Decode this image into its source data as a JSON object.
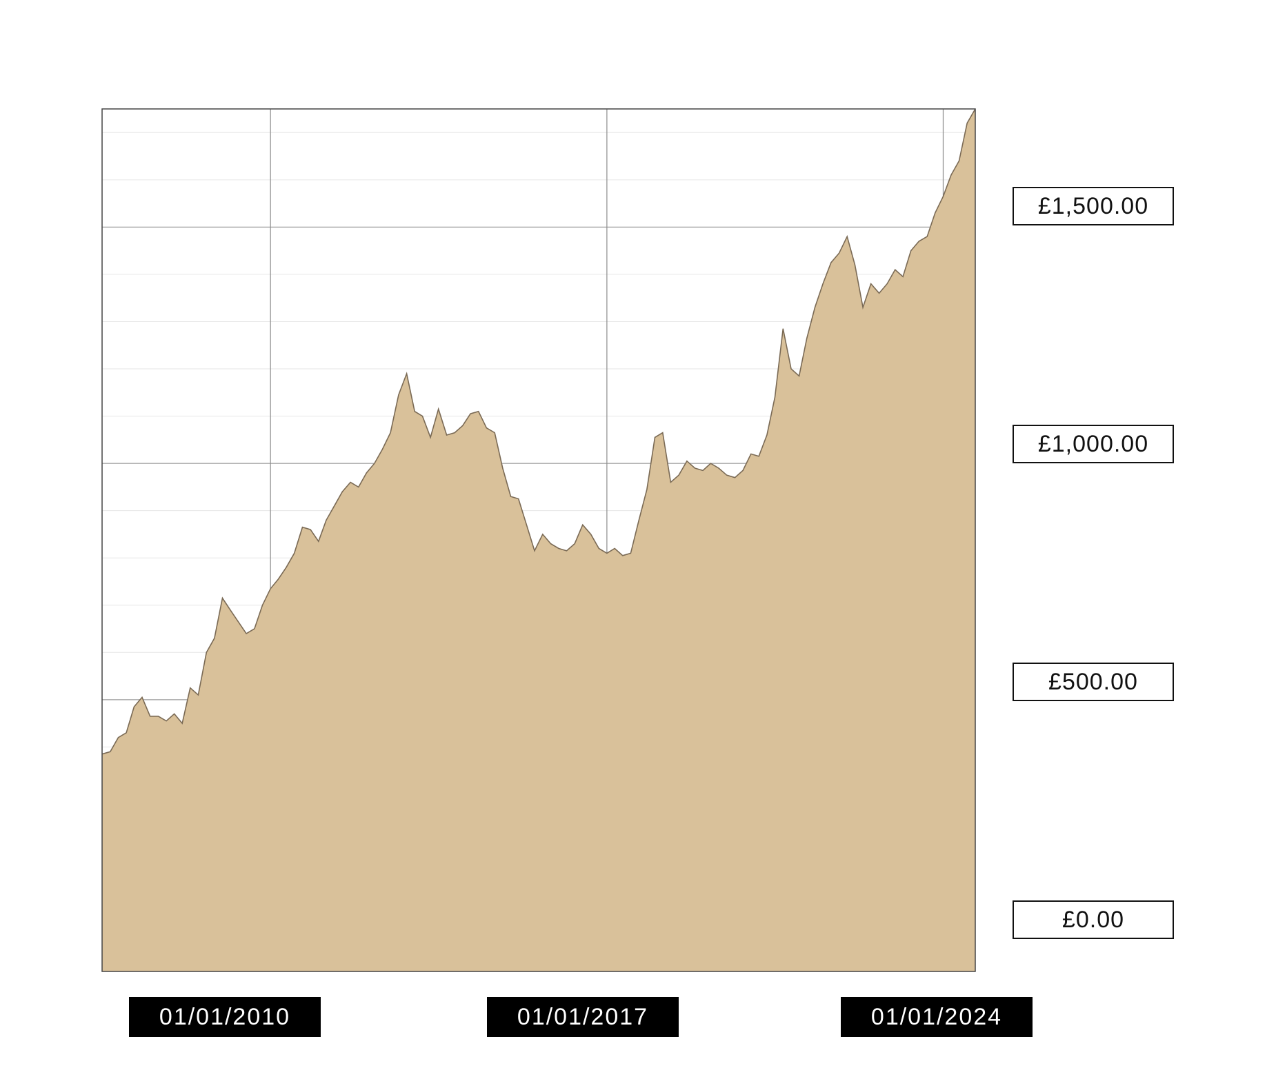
{
  "chart_data": {
    "type": "area",
    "title": "",
    "xlabel": "",
    "ylabel": "",
    "currency": "£",
    "xlim": [
      "2006-07-01",
      "2024-09-01"
    ],
    "ylim": [
      -75,
      1750
    ],
    "y_ticks": [
      0,
      500,
      1000,
      1500
    ],
    "y_tick_labels": [
      "£0.00",
      "£500.00",
      "£1,000.00",
      "£1,500.00"
    ],
    "x_ticks": [
      "2010-01-01",
      "2017-01-01",
      "2024-01-01"
    ],
    "x_tick_labels": [
      "01/01/2010",
      "01/01/2017",
      "01/01/2024"
    ],
    "grid": true,
    "fill_color": "#d9c19a",
    "line_color": "#7a6a55",
    "series": [
      {
        "values": [
          [
            "2006-07-01",
            385
          ],
          [
            "2006-09-01",
            390
          ],
          [
            "2006-11-01",
            420
          ],
          [
            "2007-01-01",
            430
          ],
          [
            "2007-03-01",
            485
          ],
          [
            "2007-05-01",
            505
          ],
          [
            "2007-07-01",
            465
          ],
          [
            "2007-09-01",
            465
          ],
          [
            "2007-11-01",
            455
          ],
          [
            "2008-01-01",
            470
          ],
          [
            "2008-03-01",
            450
          ],
          [
            "2008-05-01",
            525
          ],
          [
            "2008-07-01",
            510
          ],
          [
            "2008-09-01",
            600
          ],
          [
            "2008-11-01",
            630
          ],
          [
            "2009-01-01",
            715
          ],
          [
            "2009-03-01",
            690
          ],
          [
            "2009-05-01",
            665
          ],
          [
            "2009-07-01",
            640
          ],
          [
            "2009-09-01",
            650
          ],
          [
            "2009-11-01",
            700
          ],
          [
            "2010-01-01",
            735
          ],
          [
            "2010-03-01",
            755
          ],
          [
            "2010-05-01",
            780
          ],
          [
            "2010-07-01",
            810
          ],
          [
            "2010-09-01",
            865
          ],
          [
            "2010-11-01",
            860
          ],
          [
            "2011-01-01",
            835
          ],
          [
            "2011-03-01",
            880
          ],
          [
            "2011-05-01",
            910
          ],
          [
            "2011-07-01",
            940
          ],
          [
            "2011-09-01",
            960
          ],
          [
            "2011-11-01",
            950
          ],
          [
            "2012-01-01",
            980
          ],
          [
            "2012-03-01",
            1000
          ],
          [
            "2012-05-01",
            1030
          ],
          [
            "2012-07-01",
            1065
          ],
          [
            "2012-09-01",
            1145
          ],
          [
            "2012-11-01",
            1190
          ],
          [
            "2013-01-01",
            1110
          ],
          [
            "2013-03-01",
            1100
          ],
          [
            "2013-05-01",
            1055
          ],
          [
            "2013-07-01",
            1115
          ],
          [
            "2013-09-01",
            1060
          ],
          [
            "2013-11-01",
            1065
          ],
          [
            "2014-01-01",
            1080
          ],
          [
            "2014-03-01",
            1105
          ],
          [
            "2014-05-01",
            1110
          ],
          [
            "2014-07-01",
            1075
          ],
          [
            "2014-09-01",
            1065
          ],
          [
            "2014-11-01",
            990
          ],
          [
            "2015-01-01",
            930
          ],
          [
            "2015-03-01",
            925
          ],
          [
            "2015-05-01",
            870
          ],
          [
            "2015-07-01",
            815
          ],
          [
            "2015-09-01",
            850
          ],
          [
            "2015-11-01",
            830
          ],
          [
            "2016-01-01",
            820
          ],
          [
            "2016-03-01",
            815
          ],
          [
            "2016-05-01",
            830
          ],
          [
            "2016-07-01",
            870
          ],
          [
            "2016-09-01",
            850
          ],
          [
            "2016-11-01",
            820
          ],
          [
            "2017-01-01",
            810
          ],
          [
            "2017-03-01",
            820
          ],
          [
            "2017-05-01",
            805
          ],
          [
            "2017-07-01",
            810
          ],
          [
            "2017-09-01",
            880
          ],
          [
            "2017-11-01",
            945
          ],
          [
            "2018-01-01",
            1055
          ],
          [
            "2018-03-01",
            1065
          ],
          [
            "2018-05-01",
            960
          ],
          [
            "2018-07-01",
            975
          ],
          [
            "2018-09-01",
            1005
          ],
          [
            "2018-11-01",
            990
          ],
          [
            "2019-01-01",
            985
          ],
          [
            "2019-03-01",
            1000
          ],
          [
            "2019-05-01",
            990
          ],
          [
            "2019-07-01",
            975
          ],
          [
            "2019-09-01",
            970
          ],
          [
            "2019-11-01",
            985
          ],
          [
            "2020-01-01",
            1020
          ],
          [
            "2020-03-01",
            1015
          ],
          [
            "2020-05-01",
            1060
          ],
          [
            "2020-07-01",
            1140
          ],
          [
            "2020-09-01",
            1285
          ],
          [
            "2020-11-01",
            1200
          ],
          [
            "2021-01-01",
            1185
          ],
          [
            "2021-03-01",
            1265
          ],
          [
            "2021-05-01",
            1330
          ],
          [
            "2021-07-01",
            1380
          ],
          [
            "2021-09-01",
            1425
          ],
          [
            "2021-11-01",
            1445
          ],
          [
            "2022-01-01",
            1480
          ],
          [
            "2022-03-01",
            1420
          ],
          [
            "2022-05-01",
            1330
          ],
          [
            "2022-07-01",
            1380
          ],
          [
            "2022-09-01",
            1360
          ],
          [
            "2022-11-01",
            1380
          ],
          [
            "2023-01-01",
            1410
          ],
          [
            "2023-03-01",
            1395
          ],
          [
            "2023-05-01",
            1450
          ],
          [
            "2023-07-01",
            1470
          ],
          [
            "2023-09-01",
            1480
          ],
          [
            "2023-11-01",
            1530
          ],
          [
            "2024-01-01",
            1565
          ],
          [
            "2024-03-01",
            1610
          ],
          [
            "2024-05-01",
            1640
          ],
          [
            "2024-07-01",
            1720
          ],
          [
            "2024-09-01",
            1750
          ]
        ]
      }
    ]
  }
}
